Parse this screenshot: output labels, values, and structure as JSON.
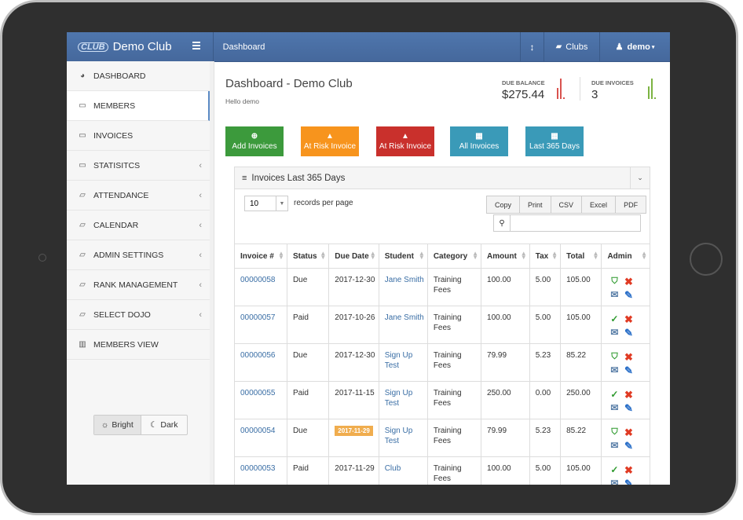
{
  "brand": {
    "logo": "CLUB",
    "title": "Demo Club"
  },
  "topnav": {
    "page": "Dashboard",
    "clubs": "Clubs",
    "user": "demo"
  },
  "sidebar": {
    "items": [
      {
        "label": "DASHBOARD",
        "icon": "dashboard-icon",
        "chevron": ""
      },
      {
        "label": "MEMBERS",
        "icon": "monitor-icon",
        "chevron": ""
      },
      {
        "label": "INVOICES",
        "icon": "monitor-icon",
        "chevron": ""
      },
      {
        "label": "STATISITCS",
        "icon": "monitor-icon",
        "chevron": "‹"
      },
      {
        "label": "ATTENDANCE",
        "icon": "folder-icon",
        "chevron": "‹"
      },
      {
        "label": "CALENDAR",
        "icon": "folder-icon",
        "chevron": "‹"
      },
      {
        "label": "ADMIN SETTINGS",
        "icon": "folder-icon",
        "chevron": "‹"
      },
      {
        "label": "RANK MANAGEMENT",
        "icon": "folder-icon",
        "chevron": "‹"
      },
      {
        "label": "SELECT DOJO",
        "icon": "folder-icon",
        "chevron": "‹"
      },
      {
        "label": "MEMBERS VIEW",
        "icon": "bar-chart-icon",
        "chevron": ""
      }
    ],
    "theme": {
      "bright": "Bright",
      "dark": "Dark"
    }
  },
  "header": {
    "title": "Dashboard - Demo Club",
    "subtitle": "Hello demo",
    "due_balance_label": "DUE BALANCE",
    "due_balance_value": "$275.44",
    "due_invoices_label": "DUE INVOICES",
    "due_invoices_value": "3"
  },
  "colors": {
    "green": "#3c9a3c",
    "orange": "#f7941d",
    "red": "#c9302c",
    "teal": "#3a9ab8",
    "nav": "#4a6fa5"
  },
  "actions": [
    {
      "label": "Add Invoices",
      "icon": "plus-circle-icon"
    },
    {
      "label": "At Risk Invoice",
      "icon": "warning-icon"
    },
    {
      "label": "At Risk Invoice",
      "icon": "warning-icon"
    },
    {
      "label": "All Invoices",
      "icon": "calendar-icon"
    },
    {
      "label": "Last 365 Days",
      "icon": "calendar-icon"
    }
  ],
  "panel": {
    "title": "Invoices Last 365 Days",
    "page_length": "10",
    "records_label": "records per page",
    "export": [
      "Copy",
      "Print",
      "CSV",
      "Excel",
      "PDF"
    ],
    "search_placeholder": ""
  },
  "table": {
    "columns": [
      "Invoice #",
      "Status",
      "Due Date",
      "Student",
      "Category",
      "Amount",
      "Tax",
      "Total",
      "Admin"
    ],
    "rows": [
      {
        "invoice": "00000058",
        "status": "Due",
        "due": "2017-12-30",
        "badge": false,
        "student": "Jane Smith",
        "category": "Training Fees",
        "amount": "100.00",
        "tax": "5.00",
        "total": "105.00",
        "paid": false
      },
      {
        "invoice": "00000057",
        "status": "Paid",
        "due": "2017-10-26",
        "badge": false,
        "student": "Jane Smith",
        "category": "Training Fees",
        "amount": "100.00",
        "tax": "5.00",
        "total": "105.00",
        "paid": true
      },
      {
        "invoice": "00000056",
        "status": "Due",
        "due": "2017-12-30",
        "badge": false,
        "student": "Sign Up Test",
        "category": "Training Fees",
        "amount": "79.99",
        "tax": "5.23",
        "total": "85.22",
        "paid": false
      },
      {
        "invoice": "00000055",
        "status": "Paid",
        "due": "2017-11-15",
        "badge": false,
        "student": "Sign Up Test",
        "category": "Training Fees",
        "amount": "250.00",
        "tax": "0.00",
        "total": "250.00",
        "paid": true
      },
      {
        "invoice": "00000054",
        "status": "Due",
        "due": "2017-11-29",
        "badge": true,
        "student": "Sign Up Test",
        "category": "Training Fees",
        "amount": "79.99",
        "tax": "5.23",
        "total": "85.22",
        "paid": false
      },
      {
        "invoice": "00000053",
        "status": "Paid",
        "due": "2017-11-29",
        "badge": false,
        "student": "Club",
        "category": "Training Fees",
        "amount": "100.00",
        "tax": "5.00",
        "total": "105.00",
        "paid": true
      }
    ]
  }
}
